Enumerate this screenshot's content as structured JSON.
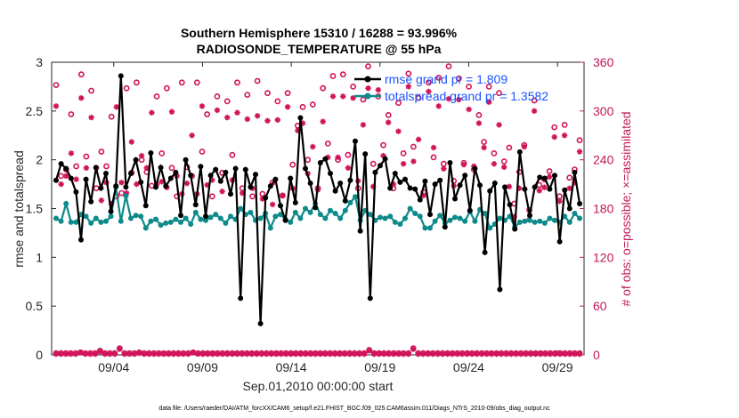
{
  "chart_data": {
    "type": "line",
    "title": "Southern Hemisphere 15310 / 16288 = 93.996%",
    "subtitle": "RADIOSONDE_TEMPERATURE @ 55 hPa",
    "xlabel": "Sep.01,2010 00:00:00 start",
    "ylabel": "rmse and totalspread",
    "ylabel_right": "# of obs: o=possible; ×=assimilated",
    "x_ticks": [
      "09/04",
      "09/09",
      "09/14",
      "09/19",
      "09/24",
      "09/29"
    ],
    "y_ticks": [
      "0",
      "0.5",
      "1",
      "1.5",
      "2",
      "2.5",
      "3"
    ],
    "y_ticks_right": [
      "0",
      "60",
      "120",
      "180",
      "240",
      "300",
      "360"
    ],
    "ylim": [
      0,
      3
    ],
    "ylim_right": [
      0,
      360
    ],
    "x_range_days": [
      0.5,
      30.5
    ],
    "legend": {
      "placement": "top-right"
    },
    "colors": {
      "rmse": "#000000",
      "spread": "#0e8a8a",
      "obs": "#d1145a",
      "legend_text": "#1a53ff"
    },
    "series": [
      {
        "name": "rmse grand pr = 1.809",
        "axis": "left",
        "values": [
          1.79,
          1.96,
          1.91,
          1.81,
          1.67,
          1.18,
          1.8,
          1.57,
          1.92,
          1.71,
          1.86,
          1.47,
          1.73,
          2.86,
          1.72,
          1.86,
          2.0,
          1.77,
          1.53,
          2.07,
          1.72,
          1.92,
          1.73,
          1.81,
          1.87,
          1.43,
          2.0,
          1.84,
          1.54,
          1.93,
          1.42,
          1.84,
          1.9,
          1.78,
          1.87,
          1.65,
          1.91,
          0.58,
          1.9,
          1.72,
          1.85,
          0.32,
          1.61,
          1.73,
          1.8,
          1.53,
          1.38,
          1.81,
          1.56,
          2.43,
          1.91,
          1.76,
          1.51,
          1.97,
          2.01,
          1.86,
          1.68,
          1.76,
          1.58,
          1.79,
          2.19,
          1.27,
          2.06,
          0.58,
          1.87,
          1.94,
          2.01,
          1.71,
          1.86,
          1.77,
          1.8,
          1.71,
          1.7,
          1.59,
          1.78,
          1.44,
          1.75,
          1.79,
          1.31,
          1.97,
          1.6,
          1.74,
          1.84,
          1.48,
          1.91,
          1.74,
          1.05,
          1.68,
          1.76,
          0.67,
          1.72,
          1.54,
          1.29,
          2.08,
          1.7,
          1.43,
          1.72,
          1.82,
          1.81,
          1.7,
          1.84,
          1.16,
          1.69,
          1.5,
          1.87,
          1.55
        ],
        "x_days": []
      },
      {
        "name": "totalspread grand pr = 1.3582",
        "axis": "left",
        "values": [
          1.4,
          1.37,
          1.55,
          1.36,
          1.36,
          1.44,
          1.42,
          1.35,
          1.4,
          1.36,
          1.37,
          1.42,
          1.72,
          1.37,
          1.63,
          1.4,
          1.43,
          1.42,
          1.3,
          1.37,
          1.39,
          1.33,
          1.35,
          1.36,
          1.39,
          1.36,
          1.4,
          1.34,
          1.46,
          1.39,
          1.38,
          1.41,
          1.44,
          1.4,
          1.35,
          1.42,
          1.39,
          1.5,
          1.44,
          1.46,
          1.38,
          1.4,
          1.45,
          1.3,
          1.42,
          1.44,
          1.39,
          1.36,
          1.46,
          1.4,
          1.5,
          1.46,
          1.55,
          1.44,
          1.4,
          1.48,
          1.45,
          1.4,
          1.48,
          1.56,
          1.62,
          1.38,
          1.48,
          1.44,
          1.38,
          1.41,
          1.4,
          1.42,
          1.36,
          1.34,
          1.4,
          1.5,
          1.45,
          1.42,
          1.3,
          1.3,
          1.37,
          1.43,
          1.35,
          1.38,
          1.41,
          1.4,
          1.37,
          1.47,
          1.37,
          1.49,
          1.45,
          1.3,
          1.34,
          1.4,
          1.38,
          1.42,
          1.31,
          1.36,
          1.37,
          1.38,
          1.36,
          1.37,
          1.35,
          1.4,
          1.38,
          1.36,
          1.42,
          1.36,
          1.45,
          1.4
        ],
        "x_days": []
      },
      {
        "name": "possible",
        "axis": "right",
        "marker": "o",
        "values": [
          332,
          220,
          228,
          296,
          232,
          345,
          244,
          325,
          205,
          250,
          232,
          293,
          195,
          199,
          328,
          224,
          335,
          240,
          225,
          208,
          318,
          248,
          328,
          230,
          195,
          335,
          231,
          220,
          335,
          250,
          296,
          195,
          318,
          224,
          312,
          246,
          335,
          205,
          320,
          195,
          337,
          198,
          322,
          212,
          312,
          196,
          322,
          234,
          282,
          305,
          240,
          308,
          205,
          328,
          260,
          343,
          240,
          345,
          246,
          330,
          205,
          314,
          355,
          235,
          318,
          258,
          295,
          205,
          310,
          248,
          346,
          256,
          316,
          200,
          335,
          243,
          341,
          235,
          355,
          214,
          340,
          236,
          330,
          228,
          295,
          262,
          330,
          248,
          322,
          238,
          255,
          186,
          225,
          258,
          178,
          313,
          209,
          216,
          226,
          280,
          195,
          283,
          218,
          228,
          264
        ],
        "x_days": []
      },
      {
        "name": "assimilated",
        "axis": "right",
        "marker": "x",
        "values": [
          306,
          210,
          220,
          248,
          216,
          316,
          230,
          292,
          230,
          190,
          212,
          186,
          305,
          212,
          199,
          262,
          210,
          245,
          230,
          298,
          210,
          213,
          206,
          299,
          220,
          198,
          211,
          270,
          198,
          306,
          209,
          215,
          301,
          201,
          292,
          215,
          298,
          199,
          290,
          205,
          294,
          192,
          288,
          185,
          289,
          196,
          305,
          205,
          276,
          285,
          223,
          256,
          203,
          287,
          243,
          318,
          243,
          318,
          230,
          316,
          214,
          283,
          328,
          207,
          326,
          245,
          286,
          210,
          275,
          235,
          330,
          238,
          265,
          196,
          324,
          255,
          306,
          229,
          315,
          208,
          314,
          234,
          302,
          232,
          285,
          255,
          311,
          235,
          283,
          231,
          207,
          170,
          205,
          256,
          166,
          300,
          202,
          206,
          219,
          268,
          189,
          270,
          205,
          212,
          250
        ],
        "x_days": []
      },
      {
        "name": "possible_bottom",
        "axis": "right",
        "marker": "o",
        "values": [
          2,
          2,
          2,
          2,
          2,
          3,
          2,
          2,
          2,
          5,
          2,
          2,
          2,
          8,
          2,
          2,
          2,
          3,
          2,
          2,
          2,
          2,
          2,
          2,
          2,
          2,
          2,
          2,
          3,
          2,
          2,
          2,
          2,
          2,
          2,
          2,
          2,
          2,
          2,
          2,
          2,
          2,
          2,
          2,
          2,
          2,
          2,
          2,
          2,
          2,
          2,
          2,
          2,
          2,
          2,
          2,
          2,
          2,
          2,
          2,
          2,
          2,
          2,
          2,
          6,
          2,
          2,
          2,
          2,
          2,
          2,
          2,
          2,
          8,
          2,
          2,
          2,
          2,
          2,
          2,
          2,
          2,
          2,
          2,
          2,
          2,
          2,
          2,
          2,
          2,
          2,
          2,
          2,
          2,
          2,
          2,
          2,
          2,
          2,
          2,
          2,
          2,
          2,
          2,
          2,
          2,
          2,
          2
        ],
        "x_days": []
      },
      {
        "name": "assimilated_bottom",
        "axis": "right",
        "marker": "x",
        "values": [
          1,
          1,
          1,
          1,
          1,
          3,
          1,
          1,
          1,
          4,
          1,
          1,
          1,
          7,
          1,
          1,
          1,
          2,
          1,
          1,
          1,
          1,
          1,
          1,
          1,
          1,
          1,
          1,
          3,
          1,
          1,
          1,
          1,
          1,
          1,
          1,
          1,
          1,
          1,
          1,
          1,
          1,
          1,
          1,
          1,
          1,
          1,
          1,
          1,
          1,
          1,
          1,
          1,
          1,
          1,
          1,
          1,
          1,
          1,
          1,
          1,
          1,
          1,
          1,
          5,
          1,
          1,
          1,
          1,
          1,
          1,
          1,
          1,
          7,
          1,
          1,
          1,
          1,
          1,
          1,
          1,
          1,
          1,
          1,
          1,
          1,
          1,
          1,
          1,
          1,
          1,
          1,
          1,
          1,
          1,
          1,
          1,
          1,
          1,
          1,
          1,
          1,
          1,
          1,
          1,
          1,
          1,
          1
        ],
        "x_days": []
      }
    ],
    "legend_entries": [
      "rmse grand pr = 1.809",
      "totalspread grand pr = 1.3582"
    ]
  },
  "footer": {
    "data_file": "data file: /Users/raeder/DAI/ATM_forcXX/CAM6_setup/f.e21.FHIST_BGC.f09_025.CAM6assim.011/Diags_NTrS_2010-09/obs_diag_output.nc"
  }
}
